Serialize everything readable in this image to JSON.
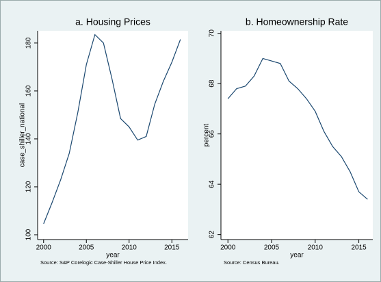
{
  "chart_data": [
    {
      "type": "line",
      "title": "a. Housing Prices",
      "y_label": "case_shiller_national",
      "x_label": "year",
      "note": "Source: S&P Corelogic Case-Shiller House Price Index.",
      "x": [
        2000,
        2001,
        2002,
        2003,
        2004,
        2005,
        2006,
        2007,
        2008,
        2009,
        2010,
        2011,
        2012,
        2013,
        2014,
        2015,
        2016
      ],
      "series": [
        {
          "color": "#1a476f",
          "values": [
            104.6,
            113.5,
            123,
            134,
            151,
            171,
            183.5,
            180,
            165,
            148.5,
            145,
            139.5,
            141,
            154.5,
            164,
            172,
            181.5
          ]
        }
      ],
      "xlim": [
        1999.3,
        2016.9
      ],
      "xticks": [
        2000,
        2005,
        2010,
        2015
      ],
      "ylim": [
        98,
        185.1
      ],
      "yticks": [
        100,
        120,
        140,
        160,
        180
      ],
      "grid": false
    },
    {
      "type": "line",
      "title": "b. Homeownership Rate",
      "y_label": "percent",
      "x_label": "year",
      "note": "Source: Census Bureau.",
      "x": [
        2000,
        2001,
        2002,
        2003,
        2004,
        2005,
        2006,
        2007,
        2008,
        2009,
        2010,
        2011,
        2012,
        2013,
        2014,
        2015,
        2016
      ],
      "series": [
        {
          "color": "#1a476f",
          "values": [
            67.4,
            67.8,
            67.9,
            68.3,
            69.0,
            68.9,
            68.8,
            68.1,
            67.8,
            67.4,
            66.9,
            66.1,
            65.5,
            65.1,
            64.5,
            63.7,
            63.4
          ]
        }
      ],
      "xlim": [
        1999.2,
        2016.6
      ],
      "xticks": [
        2000,
        2005,
        2010,
        2015
      ],
      "ylim": [
        61.8,
        70.1
      ],
      "yticks": [
        62,
        64,
        66,
        68,
        70
      ],
      "grid": false
    }
  ]
}
